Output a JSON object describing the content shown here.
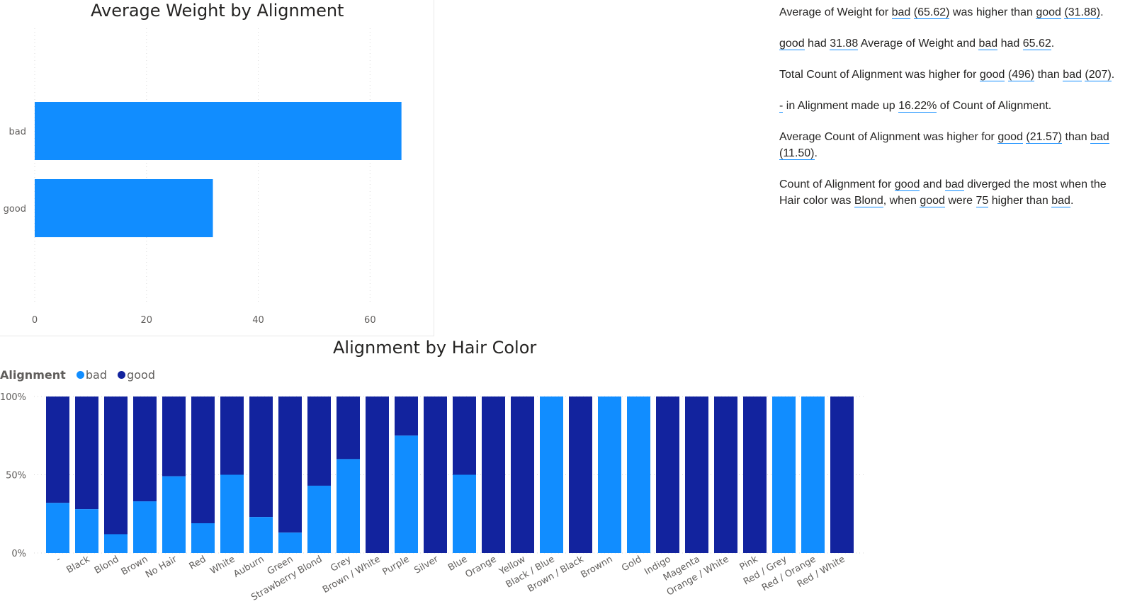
{
  "colors": {
    "bad": "#118dff",
    "good": "#12239e",
    "grid": "#d9d9d9",
    "axis": "#605e5c"
  },
  "chart_data": [
    {
      "type": "bar",
      "orientation": "horizontal",
      "title": "Average Weight by Alignment",
      "categories": [
        "bad",
        "good"
      ],
      "values": [
        65.62,
        31.88
      ],
      "xlim": [
        0,
        72
      ],
      "xticks": [
        0,
        20,
        40,
        60
      ],
      "grid": true
    },
    {
      "type": "bar",
      "stacked": "100%",
      "title": "Alignment by Hair Color",
      "legend_title": "Alignment",
      "legend_position": "top-left",
      "yticks": [
        "0%",
        "50%",
        "100%"
      ],
      "categories": [
        "-",
        "Black",
        "Blond",
        "Brown",
        "No Hair",
        "Red",
        "White",
        "Auburn",
        "Green",
        "Strawberry Blond",
        "Grey",
        "Brown / White",
        "Purple",
        "Silver",
        "Blue",
        "Orange",
        "Yellow",
        "Black / Blue",
        "Brown / Black",
        "Brownn",
        "Gold",
        "Indigo",
        "Magenta",
        "Orange / White",
        "Pink",
        "Red / Grey",
        "Red / Orange",
        "Red / White"
      ],
      "series": [
        {
          "name": "bad",
          "values": [
            0.32,
            0.28,
            0.12,
            0.33,
            0.49,
            0.19,
            0.5,
            0.23,
            0.13,
            0.43,
            0.6,
            0,
            0.75,
            0,
            0.5,
            0,
            0,
            1,
            0,
            1,
            1,
            0,
            0,
            0,
            0,
            1,
            1,
            0
          ]
        },
        {
          "name": "good",
          "values": [
            0.68,
            0.72,
            0.88,
            0.67,
            0.51,
            0.81,
            0.5,
            0.77,
            0.87,
            0.57,
            0.4,
            1,
            0.25,
            1,
            0.5,
            1,
            1,
            0,
            1,
            0,
            0,
            1,
            1,
            1,
            1,
            0,
            0,
            1
          ]
        }
      ]
    }
  ],
  "narrative": [
    [
      {
        "t": "Average of Weight for "
      },
      {
        "u": "bad"
      },
      {
        "t": " "
      },
      {
        "u": "(65.62)"
      },
      {
        "t": " was higher than "
      },
      {
        "u": "good"
      },
      {
        "t": " "
      },
      {
        "u": "(31.88)"
      },
      {
        "t": "."
      }
    ],
    [
      {
        "u": "good"
      },
      {
        "t": " had "
      },
      {
        "u": "31.88"
      },
      {
        "t": " Average of Weight and "
      },
      {
        "u": "bad"
      },
      {
        "t": " had "
      },
      {
        "u": "65.62"
      },
      {
        "t": "."
      }
    ],
    [
      {
        "t": "Total Count of Alignment was higher for "
      },
      {
        "u": "good"
      },
      {
        "t": " "
      },
      {
        "u": "(496)"
      },
      {
        "t": " than "
      },
      {
        "u": "bad"
      },
      {
        "t": " "
      },
      {
        "u": "(207)"
      },
      {
        "t": "."
      }
    ],
    [
      {
        "u": "-"
      },
      {
        "t": " in Alignment  made up "
      },
      {
        "u": "16.22%"
      },
      {
        "t": " of Count of Alignment."
      }
    ],
    [
      {
        "t": "Average Count of Alignment was higher for "
      },
      {
        "u": "good"
      },
      {
        "t": " "
      },
      {
        "u": "(21.57)"
      },
      {
        "t": " than "
      },
      {
        "u": "bad"
      },
      {
        "t": " "
      },
      {
        "u": "(11.50)"
      },
      {
        "t": "."
      }
    ],
    [
      {
        "t": "Count of Alignment for "
      },
      {
        "u": "good"
      },
      {
        "t": " and "
      },
      {
        "u": "bad"
      },
      {
        "t": " diverged the most when the Hair color was "
      },
      {
        "u": "Blond"
      },
      {
        "t": ", when "
      },
      {
        "u": "good"
      },
      {
        "t": " were "
      },
      {
        "u": "75"
      },
      {
        "t": " higher than "
      },
      {
        "u": "bad"
      },
      {
        "t": "."
      }
    ]
  ]
}
